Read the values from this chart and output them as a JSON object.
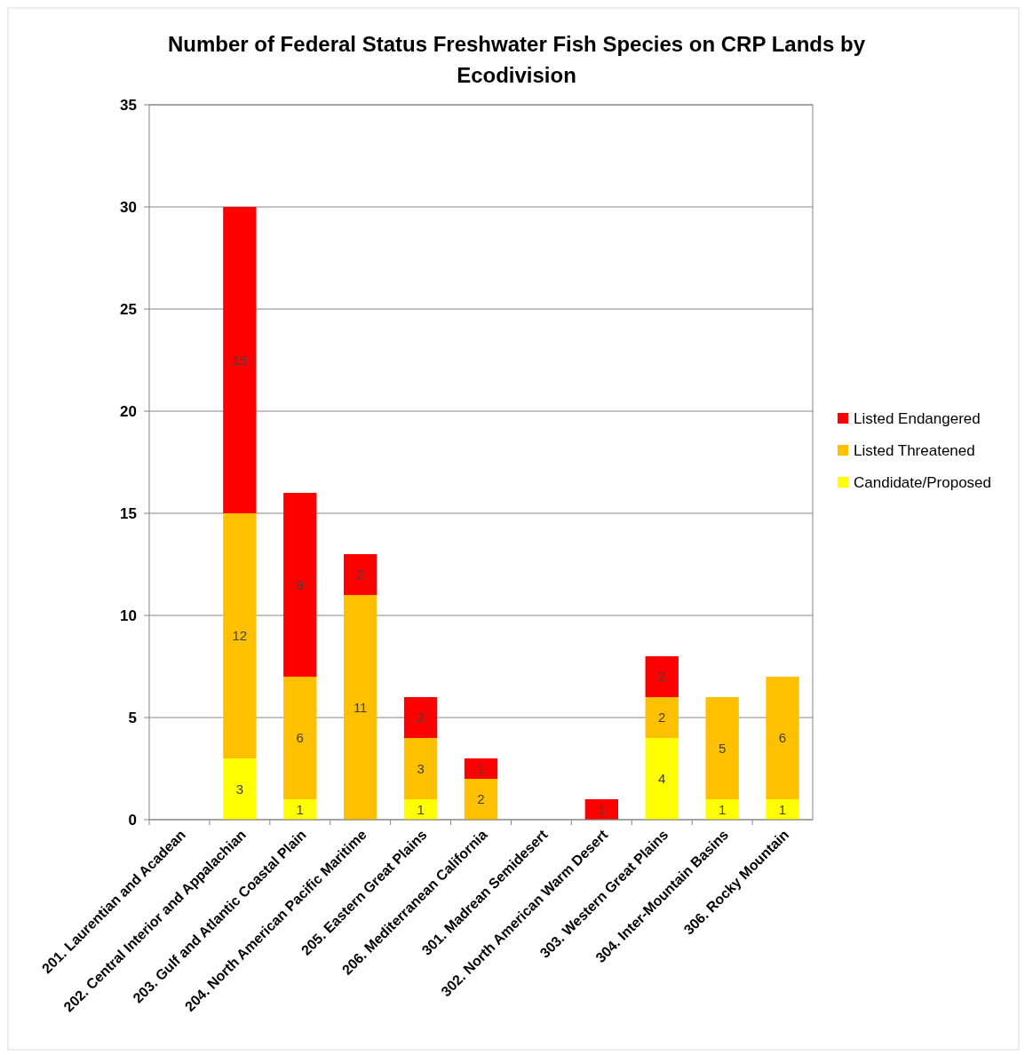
{
  "chart_data": {
    "type": "bar",
    "title": "Number of Federal Status Freshwater Fish Species on CRP Lands by Ecodivision",
    "categories": [
      "201. Laurentian and Acadean",
      "202. Central Interior and Appalachian",
      "203. Gulf and Atlantic Coastal Plain",
      "204. North American Pacific Maritime",
      "205. Eastern Great Plains",
      "206. Mediterranean California",
      "301. Madrean Semidesert",
      "302. North American Warm Desert",
      "303. Western Great Plains",
      "304. Inter-Mountain Basins",
      "306. Rocky Mountain"
    ],
    "series": [
      {
        "name": "Candidate/Proposed",
        "color": "#ffff00",
        "values": [
          null,
          3,
          1,
          null,
          1,
          null,
          null,
          null,
          4,
          1,
          1
        ]
      },
      {
        "name": "Listed Threatened",
        "color": "#ffc000",
        "values": [
          null,
          12,
          6,
          11,
          3,
          2,
          null,
          null,
          2,
          5,
          6
        ]
      },
      {
        "name": "Listed Endangered",
        "color": "#ff0000",
        "values": [
          null,
          15,
          9,
          2,
          2,
          1,
          null,
          1,
          2,
          null,
          null
        ]
      }
    ],
    "stacked": true,
    "data_labels": true,
    "ylim": [
      0,
      35
    ],
    "yticks": [
      0,
      5,
      10,
      15,
      20,
      25,
      30,
      35
    ],
    "grid": "y",
    "legend": "right"
  }
}
